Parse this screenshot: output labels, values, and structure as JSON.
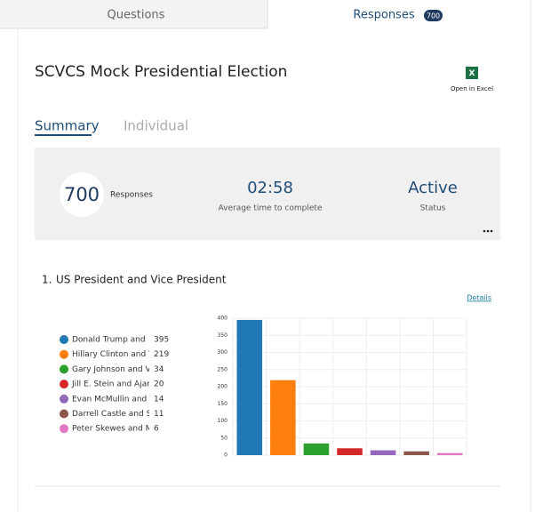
{
  "tabs": {
    "questions": "Questions",
    "responses": "Responses",
    "responses_badge": "700"
  },
  "form": {
    "title": "SCVCS Mock Presidential Election",
    "open_in_excel": "Open in Excel"
  },
  "view_tabs": {
    "summary": "Summary",
    "individual": "Individual"
  },
  "summary": {
    "responses_count": "700",
    "responses_label": "Responses",
    "avg_time": "02:58",
    "avg_time_label": "Average time to complete",
    "status": "Active",
    "status_label": "Status"
  },
  "question": {
    "number": "1.",
    "title": "US President and Vice President",
    "details": "Details"
  },
  "chart_data": {
    "type": "bar",
    "categories": [
      "Donald Trump and",
      "Hillary Clinton and T",
      "Gary Johnson and V",
      "Jill E. Stein and Ajam",
      "Evan McMullin and",
      "Darrell Castle and Sc",
      "Peter Skewes and M"
    ],
    "values": [
      395,
      219,
      34,
      20,
      14,
      11,
      6
    ],
    "colors": [
      "#1f77b4",
      "#ff7f0e",
      "#2ca02c",
      "#d62728",
      "#9467bd",
      "#8c564b",
      "#e377c2"
    ],
    "ylim": [
      0,
      400
    ],
    "yticks": [
      0,
      50,
      100,
      150,
      200,
      250,
      300,
      350,
      400
    ],
    "grid": true
  }
}
